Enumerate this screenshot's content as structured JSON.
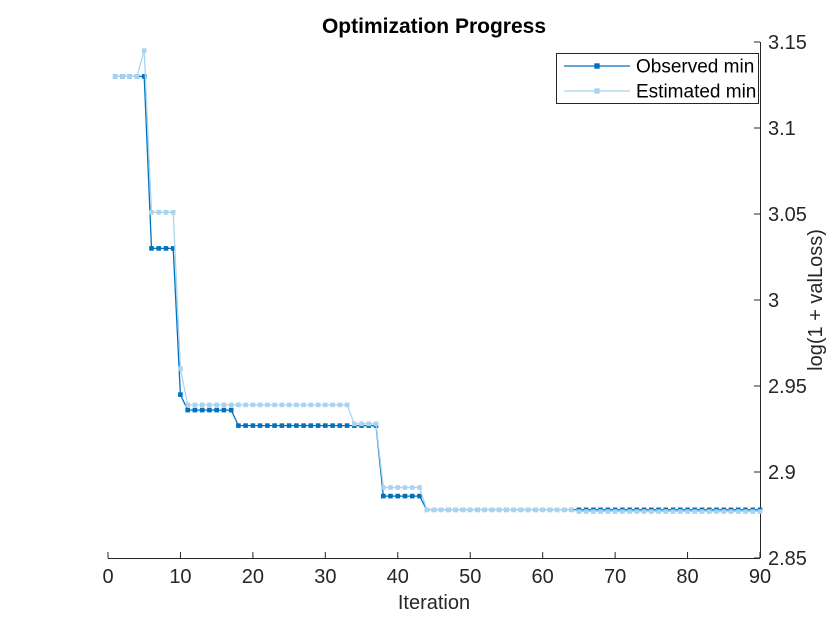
{
  "chart_data": {
    "type": "line",
    "title": "Optimization Progress",
    "xlabel": "Iteration",
    "ylabel": "log(1 + valLoss)",
    "xlim": [
      0,
      90
    ],
    "ylim": [
      2.85,
      3.15
    ],
    "xticks": [
      0,
      10,
      20,
      30,
      40,
      50,
      60,
      70,
      80,
      90
    ],
    "xtick_labels": [
      "0",
      "10",
      "20",
      "30",
      "40",
      "50",
      "60",
      "70",
      "80",
      "90"
    ],
    "yticks": [
      2.85,
      2.9,
      2.95,
      3,
      3.05,
      3.1,
      3.15
    ],
    "ytick_labels": [
      "2.85",
      "2.9",
      "2.95",
      "3",
      "3.05",
      "3.1",
      "3.15"
    ],
    "y_axis_side": "right",
    "grid": false,
    "axis_color": "#262626",
    "background": "#ffffff",
    "legend": {
      "position": "top-right",
      "border_color": "#262626",
      "background": "#ffffff"
    },
    "series": [
      {
        "name": "Observed min",
        "color": "#0072BD",
        "marker": "square",
        "x": [
          1,
          2,
          3,
          4,
          5,
          6,
          7,
          8,
          9,
          10,
          11,
          12,
          13,
          14,
          15,
          16,
          17,
          18,
          19,
          20,
          21,
          22,
          23,
          24,
          25,
          26,
          27,
          28,
          29,
          30,
          31,
          32,
          33,
          34,
          35,
          36,
          37,
          38,
          39,
          40,
          41,
          42,
          43,
          44,
          45,
          46,
          47,
          48,
          49,
          50,
          51,
          52,
          53,
          54,
          55,
          56,
          57,
          58,
          59,
          60,
          61,
          62,
          63,
          64,
          65,
          66,
          67,
          68,
          69,
          70,
          71,
          72,
          73,
          74,
          75,
          76,
          77,
          78,
          79,
          80,
          81,
          82,
          83,
          84,
          85,
          86,
          87,
          88,
          89,
          90
        ],
        "y": [
          3.13,
          3.13,
          3.13,
          3.13,
          3.13,
          3.03,
          3.03,
          3.03,
          3.03,
          2.945,
          2.936,
          2.936,
          2.936,
          2.936,
          2.936,
          2.936,
          2.936,
          2.927,
          2.927,
          2.927,
          2.927,
          2.927,
          2.927,
          2.927,
          2.927,
          2.927,
          2.927,
          2.927,
          2.927,
          2.927,
          2.927,
          2.927,
          2.927,
          2.927,
          2.927,
          2.927,
          2.927,
          2.886,
          2.886,
          2.886,
          2.886,
          2.886,
          2.886,
          2.878,
          2.878,
          2.878,
          2.878,
          2.878,
          2.878,
          2.878,
          2.878,
          2.878,
          2.878,
          2.878,
          2.878,
          2.878,
          2.878,
          2.878,
          2.878,
          2.878,
          2.878,
          2.878,
          2.878,
          2.878,
          2.878,
          2.878,
          2.878,
          2.878,
          2.878,
          2.878,
          2.878,
          2.878,
          2.878,
          2.878,
          2.878,
          2.878,
          2.878,
          2.878,
          2.878,
          2.878,
          2.878,
          2.878,
          2.878,
          2.878,
          2.878,
          2.878,
          2.878,
          2.878,
          2.878,
          2.878
        ]
      },
      {
        "name": "Estimated min",
        "color": "#A9D4F1",
        "marker": "square",
        "x": [
          1,
          2,
          3,
          4,
          5,
          6,
          7,
          8,
          9,
          10,
          11,
          12,
          13,
          14,
          15,
          16,
          17,
          18,
          19,
          20,
          21,
          22,
          23,
          24,
          25,
          26,
          27,
          28,
          29,
          30,
          31,
          32,
          33,
          34,
          35,
          36,
          37,
          38,
          39,
          40,
          41,
          42,
          43,
          44,
          45,
          46,
          47,
          48,
          49,
          50,
          51,
          52,
          53,
          54,
          55,
          56,
          57,
          58,
          59,
          60,
          61,
          62,
          63,
          64,
          65,
          66,
          67,
          68,
          69,
          70,
          71,
          72,
          73,
          74,
          75,
          76,
          77,
          78,
          79,
          80,
          81,
          82,
          83,
          84,
          85,
          86,
          87,
          88,
          89,
          90
        ],
        "y": [
          3.13,
          3.13,
          3.13,
          3.13,
          3.145,
          3.051,
          3.051,
          3.051,
          3.051,
          2.96,
          2.939,
          2.939,
          2.939,
          2.939,
          2.939,
          2.939,
          2.939,
          2.939,
          2.939,
          2.939,
          2.939,
          2.939,
          2.939,
          2.939,
          2.939,
          2.939,
          2.939,
          2.939,
          2.939,
          2.939,
          2.939,
          2.939,
          2.939,
          2.928,
          2.928,
          2.928,
          2.928,
          2.891,
          2.891,
          2.891,
          2.891,
          2.891,
          2.891,
          2.878,
          2.878,
          2.878,
          2.878,
          2.878,
          2.878,
          2.878,
          2.878,
          2.878,
          2.878,
          2.878,
          2.878,
          2.878,
          2.878,
          2.878,
          2.878,
          2.878,
          2.878,
          2.878,
          2.878,
          2.878,
          2.877,
          2.877,
          2.877,
          2.877,
          2.877,
          2.877,
          2.877,
          2.877,
          2.877,
          2.877,
          2.877,
          2.877,
          2.877,
          2.877,
          2.877,
          2.877,
          2.877,
          2.877,
          2.877,
          2.877,
          2.877,
          2.877,
          2.877,
          2.877,
          2.877,
          2.877
        ]
      }
    ]
  }
}
